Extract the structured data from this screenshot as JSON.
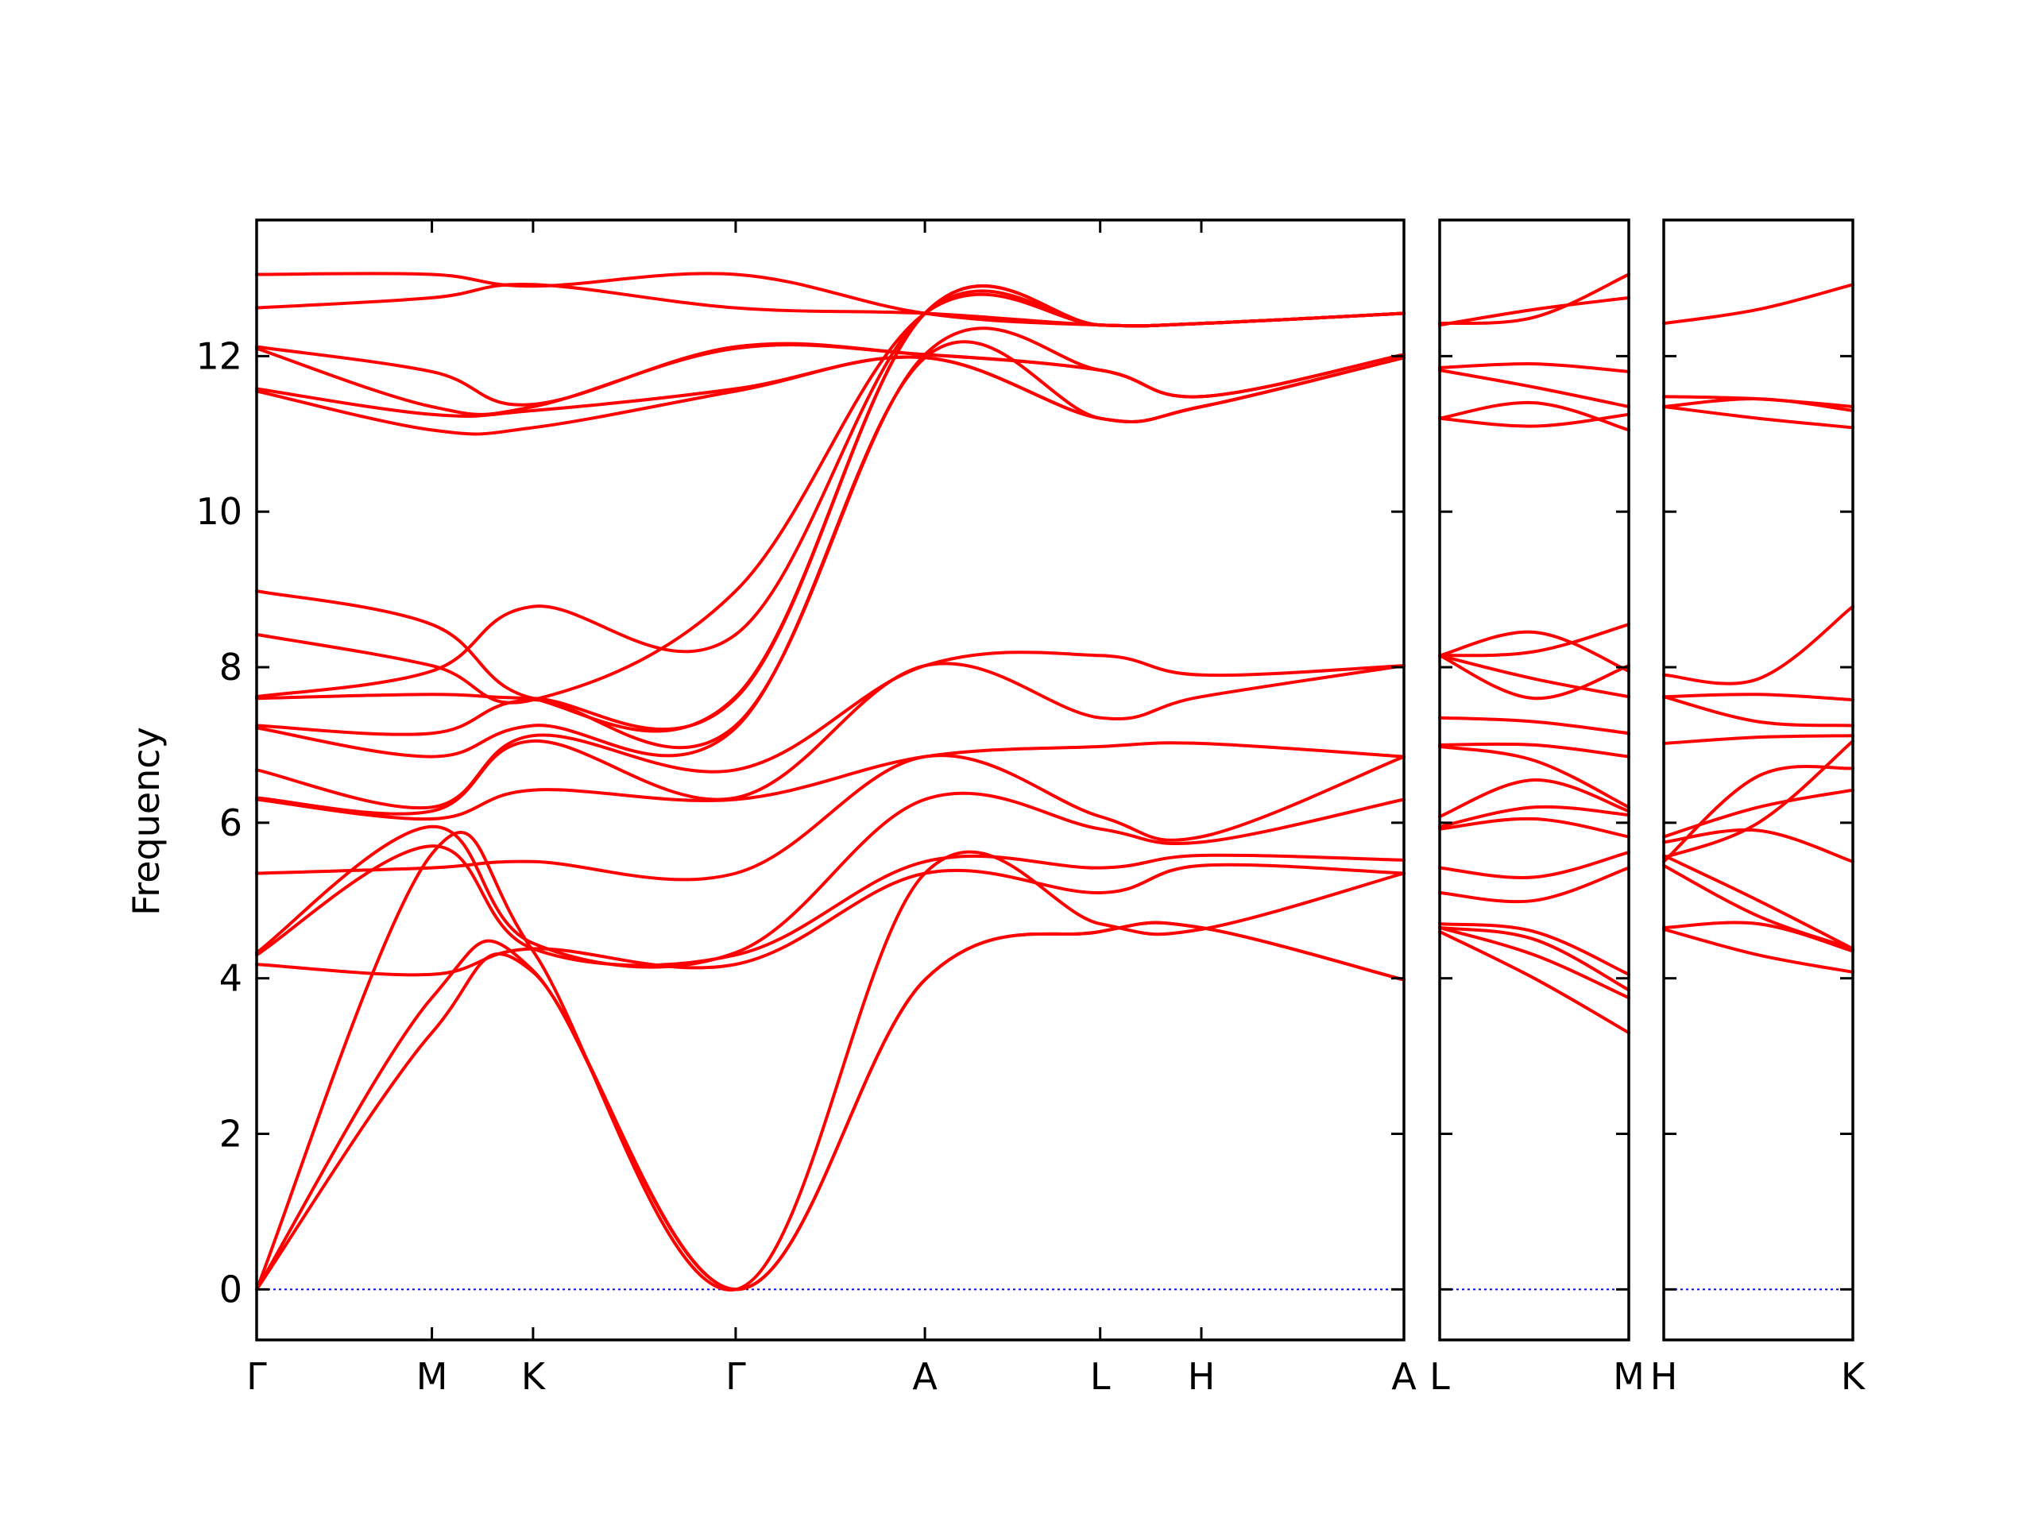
{
  "chart_data": {
    "type": "line",
    "ylabel": "Frequency",
    "ylim": [
      -0.65,
      13.75
    ],
    "yticks": [
      0,
      2,
      4,
      6,
      8,
      10,
      12
    ],
    "colors": {
      "bands": "#ff0000",
      "zero_line": "#0000ff"
    },
    "zero_line": true,
    "panels": [
      {
        "name": "main",
        "labels": [
          "Γ",
          "M",
          "K",
          "Γ",
          "A",
          "L",
          "H",
          "A"
        ],
        "x_positions": [
          0,
          0.577,
          0.91,
          1.577,
          2.2,
          2.777,
          3.11,
          3.777
        ],
        "series": [
          {
            "name": "",
            "x": [
              0,
              0.577,
              0.91,
              1.577,
              2.2,
              2.777,
              3.11,
              3.777
            ],
            "values": [
              0,
              3.3,
              4.08,
              0,
              3.98,
              4.6,
              4.65,
              3.98
            ]
          },
          {
            "name": "",
            "x": [
              0,
              0.577,
              0.91,
              1.577,
              2.2,
              2.777,
              3.11,
              3.777
            ],
            "values": [
              0,
              3.75,
              4.1,
              0,
              3.98,
              4.6,
              4.65,
              3.98
            ]
          },
          {
            "name": "",
            "x": [
              0,
              0.577,
              0.91,
              1.577,
              2.2,
              2.777,
              3.11,
              3.777
            ],
            "values": [
              0,
              5.6,
              4.35,
              0,
              5.35,
              4.7,
              4.63,
              5.35
            ]
          },
          {
            "name": "",
            "x": [
              0,
              0.577,
              0.91,
              1.577,
              2.2,
              2.777,
              3.11,
              3.777
            ],
            "values": [
              4.18,
              4.05,
              4.38,
              4.18,
              5.35,
              5.1,
              5.45,
              5.35
            ]
          },
          {
            "name": "",
            "x": [
              0,
              0.577,
              0.91,
              1.577,
              2.2,
              2.777,
              3.11,
              3.777
            ],
            "values": [
              4.3,
              5.7,
              4.38,
              4.3,
              5.5,
              5.42,
              5.58,
              5.52
            ]
          },
          {
            "name": "",
            "x": [
              0,
              0.577,
              0.91,
              1.577,
              2.2,
              2.777,
              3.11,
              3.777
            ],
            "values": [
              4.33,
              5.95,
              4.45,
              4.33,
              6.3,
              5.92,
              5.75,
              6.3
            ]
          },
          {
            "name": "",
            "x": [
              0,
              0.577,
              0.91,
              1.577,
              2.2,
              2.777,
              3.11,
              3.777
            ],
            "values": [
              5.35,
              5.42,
              5.5,
              5.35,
              6.85,
              6.08,
              5.82,
              6.85
            ]
          },
          {
            "name": "",
            "x": [
              0,
              0.577,
              0.91,
              1.577,
              2.2,
              2.777,
              3.11,
              3.777
            ],
            "values": [
              6.3,
              6.05,
              6.42,
              6.3,
              6.85,
              6.98,
              7.02,
              6.85
            ]
          },
          {
            "name": "",
            "x": [
              0,
              0.577,
              0.91,
              1.577,
              2.2,
              2.777,
              3.11,
              3.777
            ],
            "values": [
              6.32,
              6.15,
              7.05,
              6.32,
              8.02,
              7.35,
              7.62,
              8.02
            ]
          },
          {
            "name": "",
            "x": [
              0,
              0.577,
              0.91,
              1.577,
              2.2,
              2.777,
              3.11,
              3.777
            ],
            "values": [
              6.68,
              6.2,
              7.12,
              6.68,
              8.02,
              8.15,
              7.9,
              8.02
            ]
          },
          {
            "name": "",
            "x": [
              0,
              0.577,
              0.91,
              1.577,
              2.2,
              2.777,
              3.11,
              3.777
            ],
            "values": [
              7.22,
              6.85,
              7.25,
              7.22,
              11.98,
              11.2,
              11.35,
              11.98
            ]
          },
          {
            "name": "",
            "x": [
              0,
              0.577,
              0.91,
              1.577,
              2.2,
              2.777,
              3.11,
              3.777
            ],
            "values": [
              7.25,
              7.15,
              7.58,
              7.25,
              12.02,
              11.82,
              11.48,
              12.02
            ]
          },
          {
            "name": "",
            "x": [
              0,
              0.577,
              0.91,
              1.577,
              2.2,
              2.777,
              3.11,
              3.777
            ],
            "values": [
              7.6,
              7.65,
              7.6,
              7.6,
              12.55,
              12.4,
              12.42,
              12.55
            ]
          },
          {
            "name": "",
            "x": [
              0,
              0.577,
              0.91,
              1.577,
              2.2,
              2.777,
              3.11,
              3.777
            ],
            "values": [
              7.62,
              7.95,
              8.78,
              8.42,
              12.55,
              12.4,
              12.42,
              12.55
            ]
          },
          {
            "name": "",
            "x": [
              0,
              0.577,
              0.91,
              1.577,
              2.2,
              2.777,
              3.11,
              3.777
            ],
            "values": [
              8.42,
              8.02,
              7.58,
              8.98,
              12.55,
              12.4,
              12.42,
              12.55
            ]
          },
          {
            "name": "",
            "x": [
              0,
              0.577,
              0.91,
              1.577,
              2.2,
              2.777,
              3.11,
              3.777
            ],
            "values": [
              8.98,
              8.55,
              7.6,
              7.62,
              12.55,
              12.4,
              12.42,
              12.55
            ]
          },
          {
            "name": "",
            "x": [
              0,
              0.577,
              0.91,
              1.577,
              2.2,
              2.777,
              3.11,
              3.777
            ],
            "values": [
              11.55,
              11.05,
              11.08,
              11.55,
              11.98,
              11.2,
              11.35,
              11.98
            ]
          },
          {
            "name": "",
            "x": [
              0,
              0.577,
              0.91,
              1.577,
              2.2,
              2.777,
              3.11,
              3.777
            ],
            "values": [
              11.58,
              11.25,
              11.3,
              11.58,
              11.98,
              11.2,
              11.35,
              11.98
            ]
          },
          {
            "name": "",
            "x": [
              0,
              0.577,
              0.91,
              1.577,
              2.2,
              2.777,
              3.11,
              3.777
            ],
            "values": [
              12.1,
              11.35,
              11.35,
              12.1,
              12.02,
              11.82,
              11.48,
              12.02
            ]
          },
          {
            "name": "",
            "x": [
              0,
              0.577,
              0.91,
              1.577,
              2.2,
              2.777,
              3.11,
              3.777
            ],
            "values": [
              12.12,
              11.8,
              11.38,
              12.12,
              12.02,
              11.82,
              11.48,
              12.02
            ]
          },
          {
            "name": "",
            "x": [
              0,
              0.577,
              0.91,
              1.577,
              2.2,
              2.777,
              3.11,
              3.777
            ],
            "values": [
              12.62,
              12.75,
              12.92,
              12.62,
              12.55,
              12.4,
              12.42,
              12.55
            ]
          },
          {
            "name": "",
            "x": [
              0,
              0.577,
              0.91,
              1.577,
              2.2,
              2.777,
              3.11,
              3.777
            ],
            "values": [
              13.05,
              13.05,
              12.9,
              13.05,
              12.55,
              12.4,
              12.42,
              12.55
            ]
          }
        ]
      },
      {
        "name": "L-M",
        "labels": [
          "L",
          "M"
        ],
        "x_positions": [
          0,
          1
        ],
        "series": [
          {
            "name": "",
            "x": [
              0,
              0.5,
              1
            ],
            "values": [
              4.6,
              4.0,
              3.3
            ]
          },
          {
            "name": "",
            "x": [
              0,
              0.5,
              1
            ],
            "values": [
              4.65,
              4.3,
              3.75
            ]
          },
          {
            "name": "",
            "x": [
              0,
              0.5,
              1
            ],
            "values": [
              4.65,
              4.5,
              3.85
            ]
          },
          {
            "name": "",
            "x": [
              0,
              0.5,
              1
            ],
            "values": [
              4.7,
              4.6,
              4.05
            ]
          },
          {
            "name": "",
            "x": [
              0,
              0.5,
              1
            ],
            "values": [
              5.1,
              5.0,
              5.42
            ]
          },
          {
            "name": "",
            "x": [
              0,
              0.5,
              1
            ],
            "values": [
              5.42,
              5.3,
              5.62
            ]
          },
          {
            "name": "",
            "x": [
              0,
              0.5,
              1
            ],
            "values": [
              5.92,
              6.05,
              5.82
            ]
          },
          {
            "name": "",
            "x": [
              0,
              0.5,
              1
            ],
            "values": [
              5.95,
              6.2,
              6.1
            ]
          },
          {
            "name": "",
            "x": [
              0,
              0.5,
              1
            ],
            "values": [
              6.08,
              6.55,
              6.15
            ]
          },
          {
            "name": "",
            "x": [
              0,
              0.5,
              1
            ],
            "values": [
              6.98,
              6.8,
              6.2
            ]
          },
          {
            "name": "",
            "x": [
              0,
              0.5,
              1
            ],
            "values": [
              7.0,
              7.0,
              6.85
            ]
          },
          {
            "name": "",
            "x": [
              0,
              0.5,
              1
            ],
            "values": [
              7.35,
              7.3,
              7.15
            ]
          },
          {
            "name": "",
            "x": [
              0,
              0.5,
              1
            ],
            "values": [
              8.15,
              7.85,
              7.62
            ]
          },
          {
            "name": "",
            "x": [
              0,
              0.5,
              1
            ],
            "values": [
              8.15,
              8.45,
              7.95
            ]
          },
          {
            "name": "",
            "x": [
              0,
              0.5,
              1
            ],
            "values": [
              8.15,
              7.6,
              8.02
            ]
          },
          {
            "name": "",
            "x": [
              0,
              0.5,
              1
            ],
            "values": [
              8.15,
              8.2,
              8.55
            ]
          },
          {
            "name": "",
            "x": [
              0,
              0.5,
              1
            ],
            "values": [
              11.2,
              11.4,
              11.05
            ]
          },
          {
            "name": "",
            "x": [
              0,
              0.5,
              1
            ],
            "values": [
              11.2,
              11.1,
              11.25
            ]
          },
          {
            "name": "",
            "x": [
              0,
              0.5,
              1
            ],
            "values": [
              11.82,
              11.6,
              11.35
            ]
          },
          {
            "name": "",
            "x": [
              0,
              0.5,
              1
            ],
            "values": [
              11.85,
              11.9,
              11.8
            ]
          },
          {
            "name": "",
            "x": [
              0,
              0.5,
              1
            ],
            "values": [
              12.4,
              12.6,
              12.75
            ]
          },
          {
            "name": "",
            "x": [
              0,
              0.5,
              1
            ],
            "values": [
              12.42,
              12.5,
              13.05
            ]
          }
        ]
      },
      {
        "name": "H-K",
        "labels": [
          "H",
          "K"
        ],
        "x_positions": [
          0,
          1
        ],
        "series": [
          {
            "name": "",
            "x": [
              0,
              0.5,
              1
            ],
            "values": [
              4.63,
              4.3,
              4.08
            ]
          },
          {
            "name": "",
            "x": [
              0,
              0.5,
              1
            ],
            "values": [
              4.65,
              4.7,
              4.35
            ]
          },
          {
            "name": "",
            "x": [
              0,
              0.5,
              1
            ],
            "values": [
              5.45,
              4.8,
              4.38
            ]
          },
          {
            "name": "",
            "x": [
              0,
              0.5,
              1
            ],
            "values": [
              5.58,
              5.0,
              4.38
            ]
          },
          {
            "name": "",
            "x": [
              0,
              0.5,
              1
            ],
            "values": [
              5.75,
              5.9,
              5.5
            ]
          },
          {
            "name": "",
            "x": [
              0,
              0.5,
              1
            ],
            "values": [
              5.82,
              6.2,
              6.42
            ]
          },
          {
            "name": "",
            "x": [
              0,
              0.5,
              1
            ],
            "values": [
              5.5,
              6.6,
              6.7
            ]
          },
          {
            "name": "",
            "x": [
              0,
              0.5,
              1
            ],
            "values": [
              5.55,
              6.0,
              7.05
            ]
          },
          {
            "name": "",
            "x": [
              0,
              0.5,
              1
            ],
            "values": [
              7.02,
              7.1,
              7.12
            ]
          },
          {
            "name": "",
            "x": [
              0,
              0.5,
              1
            ],
            "values": [
              7.62,
              7.3,
              7.25
            ]
          },
          {
            "name": "",
            "x": [
              0,
              0.5,
              1
            ],
            "values": [
              7.62,
              7.65,
              7.58
            ]
          },
          {
            "name": "",
            "x": [
              0,
              0.5,
              1
            ],
            "values": [
              7.9,
              7.85,
              8.78
            ]
          },
          {
            "name": "",
            "x": [
              0,
              0.5,
              1
            ],
            "values": [
              11.35,
              11.2,
              11.08
            ]
          },
          {
            "name": "",
            "x": [
              0,
              0.5,
              1
            ],
            "values": [
              11.35,
              11.45,
              11.3
            ]
          },
          {
            "name": "",
            "x": [
              0,
              0.5,
              1
            ],
            "values": [
              11.48,
              11.45,
              11.35
            ]
          },
          {
            "name": "",
            "x": [
              0,
              0.5,
              1
            ],
            "values": [
              12.42,
              12.6,
              12.92
            ]
          }
        ]
      }
    ]
  }
}
